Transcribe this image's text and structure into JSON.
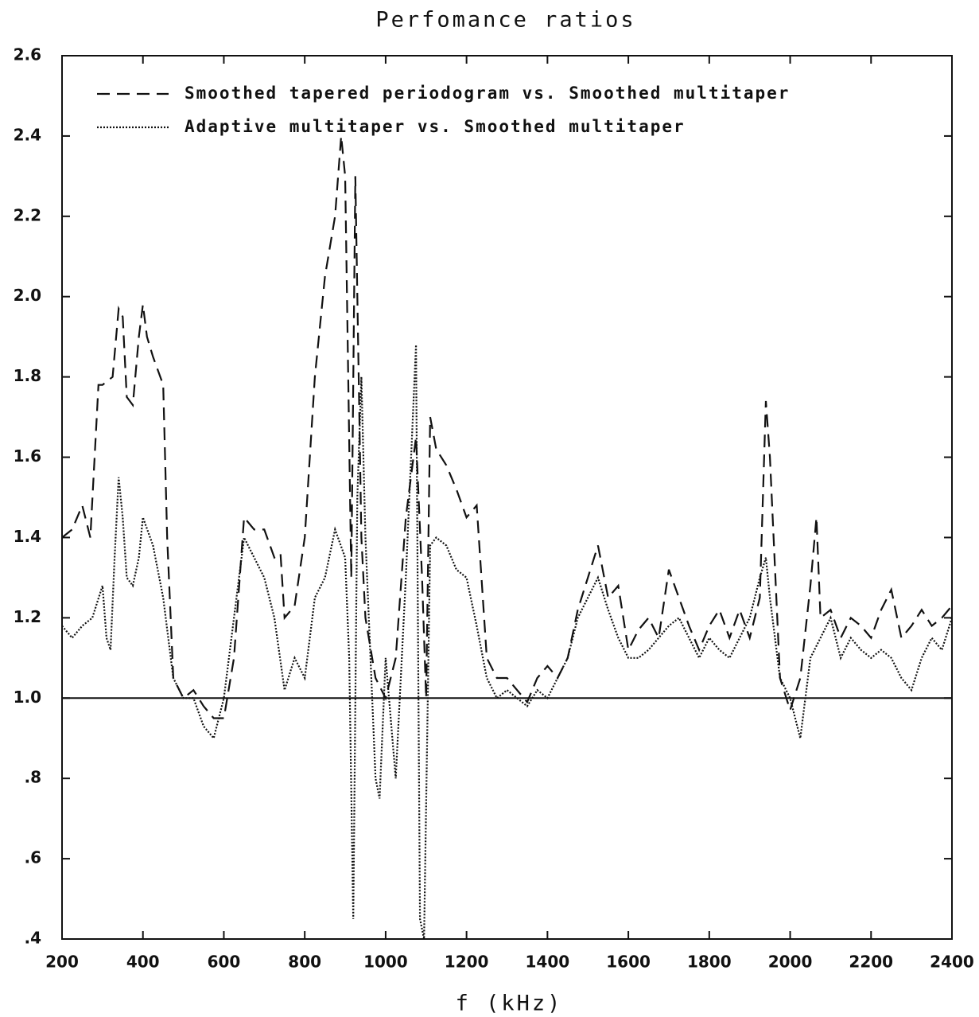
{
  "chart_data": {
    "type": "line",
    "title": "Perfomance ratios",
    "x_label": "f (kHz)",
    "xlim": [
      200,
      2400
    ],
    "ylim": [
      0.4,
      2.6
    ],
    "xticks": [
      200,
      400,
      600,
      800,
      1000,
      1200,
      1400,
      1600,
      1800,
      2000,
      2200,
      2400
    ],
    "yticks": [
      {
        "value": 0.4,
        "label": ".4"
      },
      {
        "value": 0.6,
        "label": ".6"
      },
      {
        "value": 0.8,
        "label": ".8"
      },
      {
        "value": 1.0,
        "label": "1.0"
      },
      1.2,
      1.4,
      1.6,
      1.8,
      {
        "value": 2.0,
        "label": "2.0"
      },
      2.2,
      2.4,
      2.6
    ],
    "hline": 1.0,
    "legend": "upper left",
    "grid": false,
    "series": [
      {
        "name": "Smoothed tapered periodogram vs. Smoothed multitaper",
        "color": "#111111",
        "style": "dashed",
        "x": [
          200,
          225,
          250,
          270,
          290,
          300,
          325,
          340,
          350,
          360,
          375,
          390,
          400,
          410,
          425,
          450,
          460,
          475,
          500,
          525,
          550,
          575,
          600,
          625,
          650,
          675,
          700,
          725,
          740,
          750,
          775,
          800,
          825,
          850,
          875,
          890,
          900,
          915,
          925,
          940,
          950,
          975,
          1000,
          1025,
          1050,
          1075,
          1090,
          1100,
          1110,
          1125,
          1150,
          1175,
          1200,
          1225,
          1250,
          1275,
          1300,
          1325,
          1350,
          1375,
          1400,
          1425,
          1450,
          1475,
          1500,
          1525,
          1550,
          1575,
          1600,
          1625,
          1650,
          1675,
          1700,
          1725,
          1750,
          1775,
          1800,
          1825,
          1850,
          1875,
          1900,
          1925,
          1940,
          1950,
          1975,
          2000,
          2025,
          2050,
          2065,
          2075,
          2100,
          2125,
          2150,
          2175,
          2200,
          2225,
          2250,
          2275,
          2300,
          2325,
          2350,
          2375,
          2400
        ],
        "values": [
          1.4,
          1.42,
          1.48,
          1.4,
          1.78,
          1.78,
          1.8,
          1.97,
          1.95,
          1.75,
          1.73,
          1.9,
          1.98,
          1.9,
          1.85,
          1.78,
          1.4,
          1.05,
          1.0,
          1.02,
          0.98,
          0.95,
          0.95,
          1.1,
          1.45,
          1.42,
          1.42,
          1.35,
          1.36,
          1.2,
          1.23,
          1.4,
          1.8,
          2.05,
          2.2,
          2.4,
          2.3,
          1.3,
          2.3,
          1.4,
          1.2,
          1.05,
          1.0,
          1.1,
          1.45,
          1.65,
          1.3,
          1.0,
          1.7,
          1.62,
          1.58,
          1.52,
          1.45,
          1.48,
          1.1,
          1.05,
          1.05,
          1.02,
          0.99,
          1.05,
          1.08,
          1.05,
          1.1,
          1.22,
          1.3,
          1.38,
          1.25,
          1.28,
          1.12,
          1.17,
          1.2,
          1.15,
          1.32,
          1.25,
          1.18,
          1.12,
          1.18,
          1.22,
          1.15,
          1.22,
          1.15,
          1.25,
          1.74,
          1.6,
          1.05,
          0.97,
          1.05,
          1.28,
          1.45,
          1.2,
          1.22,
          1.15,
          1.2,
          1.18,
          1.15,
          1.22,
          1.27,
          1.15,
          1.18,
          1.22,
          1.18,
          1.2,
          1.23
        ]
      },
      {
        "name": "Adaptive multitaper vs. Smoothed multitaper",
        "color": "#111111",
        "style": "dotted",
        "x": [
          200,
          225,
          250,
          275,
          300,
          310,
          320,
          330,
          340,
          350,
          360,
          375,
          390,
          400,
          425,
          450,
          475,
          500,
          525,
          550,
          575,
          600,
          625,
          650,
          675,
          700,
          725,
          750,
          775,
          800,
          825,
          850,
          875,
          900,
          910,
          920,
          930,
          940,
          950,
          975,
          985,
          1000,
          1025,
          1050,
          1075,
          1085,
          1095,
          1110,
          1125,
          1150,
          1175,
          1200,
          1225,
          1250,
          1275,
          1300,
          1325,
          1350,
          1375,
          1400,
          1425,
          1450,
          1475,
          1500,
          1525,
          1550,
          1575,
          1600,
          1625,
          1650,
          1675,
          1700,
          1725,
          1750,
          1775,
          1800,
          1825,
          1850,
          1875,
          1900,
          1925,
          1940,
          1950,
          1975,
          2000,
          2025,
          2050,
          2075,
          2100,
          2125,
          2150,
          2175,
          2200,
          2225,
          2250,
          2275,
          2300,
          2325,
          2350,
          2375,
          2400
        ],
        "values": [
          1.18,
          1.15,
          1.18,
          1.2,
          1.28,
          1.15,
          1.12,
          1.35,
          1.55,
          1.45,
          1.3,
          1.28,
          1.35,
          1.45,
          1.38,
          1.25,
          1.05,
          1.0,
          1.0,
          0.93,
          0.9,
          1.0,
          1.2,
          1.4,
          1.35,
          1.3,
          1.2,
          1.02,
          1.1,
          1.05,
          1.25,
          1.3,
          1.42,
          1.35,
          1.1,
          0.45,
          1.5,
          1.8,
          1.4,
          0.8,
          0.75,
          1.1,
          0.8,
          1.3,
          1.88,
          0.45,
          0.4,
          1.38,
          1.4,
          1.38,
          1.32,
          1.3,
          1.18,
          1.05,
          1.0,
          1.02,
          1.0,
          0.98,
          1.02,
          1.0,
          1.05,
          1.1,
          1.2,
          1.25,
          1.3,
          1.22,
          1.15,
          1.1,
          1.1,
          1.12,
          1.15,
          1.18,
          1.2,
          1.15,
          1.1,
          1.15,
          1.12,
          1.1,
          1.15,
          1.2,
          1.3,
          1.35,
          1.25,
          1.05,
          1.0,
          0.9,
          1.1,
          1.15,
          1.2,
          1.1,
          1.15,
          1.12,
          1.1,
          1.12,
          1.1,
          1.05,
          1.02,
          1.1,
          1.15,
          1.12,
          1.2
        ]
      }
    ]
  }
}
